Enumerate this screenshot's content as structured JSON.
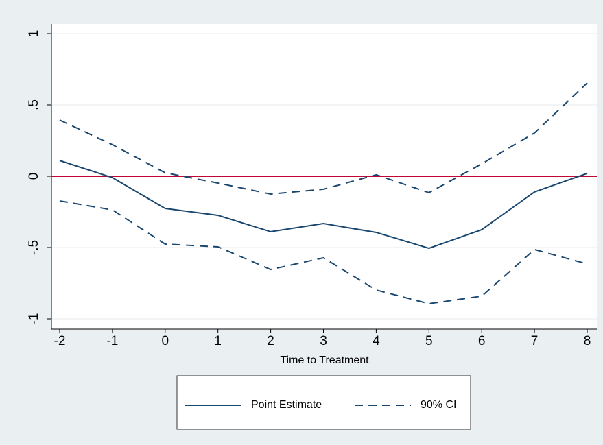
{
  "chart_data": {
    "type": "line",
    "x_label": "Time to Treatment",
    "x": [
      -2,
      -1,
      0,
      1,
      2,
      3,
      4,
      5,
      6,
      7,
      8
    ],
    "series": [
      {
        "name": "Point Estimate",
        "color": "#1a476f",
        "values": [
          0.11,
          -0.01,
          -0.226,
          -0.274,
          -0.389,
          -0.332,
          -0.394,
          -0.505,
          -0.375,
          -0.11,
          0.02
        ]
      },
      {
        "name": "90% CI",
        "color": "#1a476f",
        "dashed": true,
        "upper": [
          0.394,
          0.221,
          0.024,
          -0.048,
          -0.125,
          -0.091,
          0.01,
          -0.115,
          0.087,
          0.303,
          0.654
        ],
        "lower": [
          -0.173,
          -0.236,
          -0.476,
          -0.495,
          -0.654,
          -0.572,
          -0.798,
          -0.894,
          -0.841,
          -0.514,
          -0.615
        ]
      }
    ],
    "xlim": [
      -2,
      8
    ],
    "xticks": [
      -2,
      -1,
      0,
      1,
      2,
      3,
      4,
      5,
      6,
      7,
      8
    ],
    "ylim": [
      -1,
      1
    ],
    "yticks": [
      -1,
      {
        "value": -0.5,
        "label": "-.5"
      },
      0,
      {
        "value": 0.5,
        "label": ".5"
      },
      1
    ],
    "yline": 0,
    "yline_color": "#c10534",
    "grid": true
  }
}
